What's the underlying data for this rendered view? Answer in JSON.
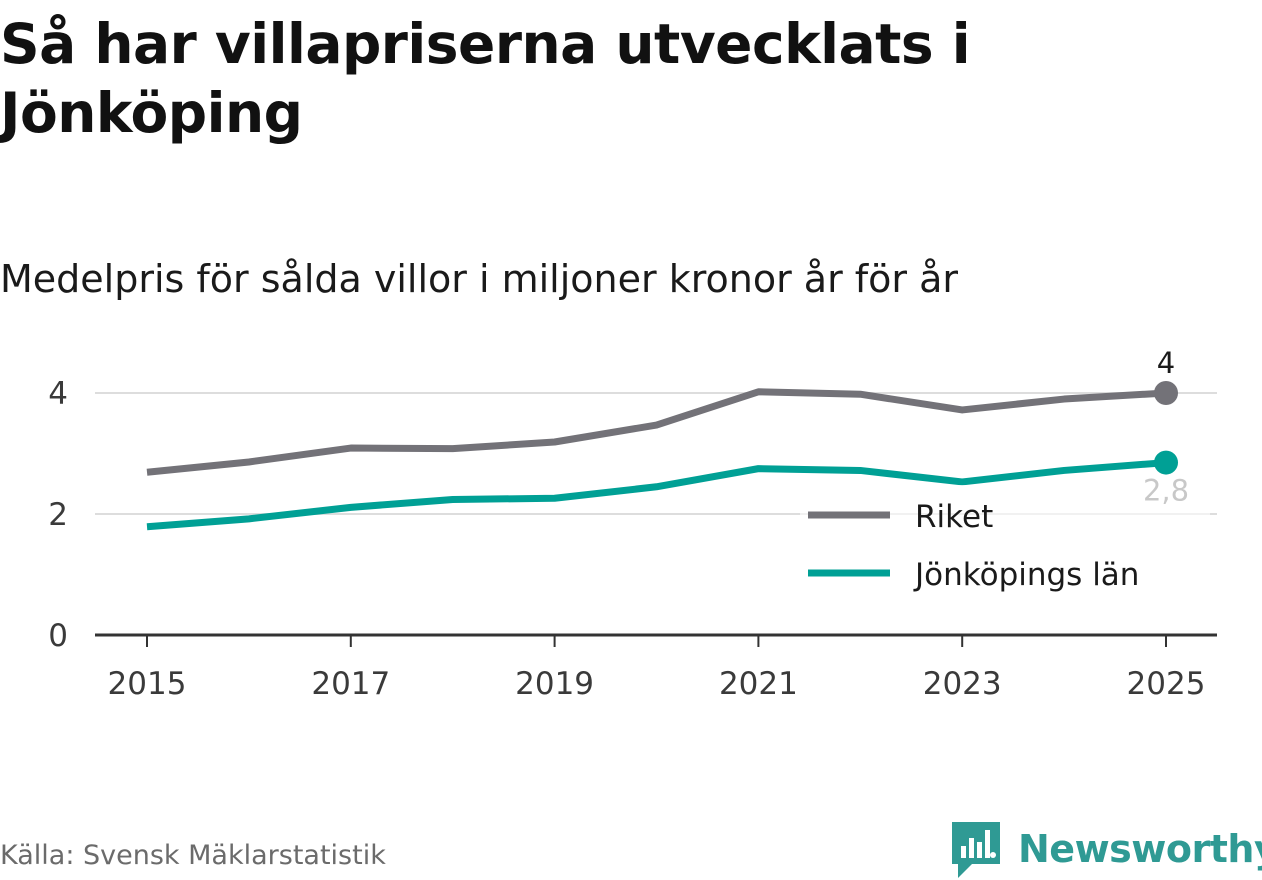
{
  "title": "Så har villapriserna utvecklats i Jönköping",
  "subtitle": "Medelpris för sålda villor i miljoner kronor år för år",
  "source": "Källa: Svensk Mäklarstatistik",
  "brand": "Newsworthy",
  "colors": {
    "riket": "#737278",
    "lan": "#00a095",
    "grid": "#dddddd",
    "axis": "#333333",
    "brand": "#2f9a94"
  },
  "chart_data": {
    "type": "line",
    "x": [
      2015,
      2016,
      2017,
      2018,
      2019,
      2020,
      2021,
      2022,
      2023,
      2024,
      2025
    ],
    "x_ticks": [
      2015,
      2017,
      2019,
      2021,
      2023,
      2025
    ],
    "x_tick_labels": [
      "2015",
      "2017",
      "2019",
      "2021",
      "2023",
      "2025"
    ],
    "y_ticks": [
      0,
      2,
      4
    ],
    "y_tick_labels": [
      "0",
      "2",
      "4"
    ],
    "ylim": [
      0,
      4.4
    ],
    "grid": true,
    "legend_position": "right",
    "series": [
      {
        "name": "Riket",
        "key": "riket",
        "values": [
          2.69,
          2.86,
          3.09,
          3.08,
          3.19,
          3.47,
          4.02,
          3.98,
          3.72,
          3.9,
          4.0
        ],
        "end_label": "4"
      },
      {
        "name": "Jönköpings län",
        "key": "lan",
        "values": [
          1.79,
          1.92,
          2.11,
          2.24,
          2.26,
          2.45,
          2.75,
          2.72,
          2.53,
          2.72,
          2.85
        ],
        "end_label": "2,8"
      }
    ]
  }
}
